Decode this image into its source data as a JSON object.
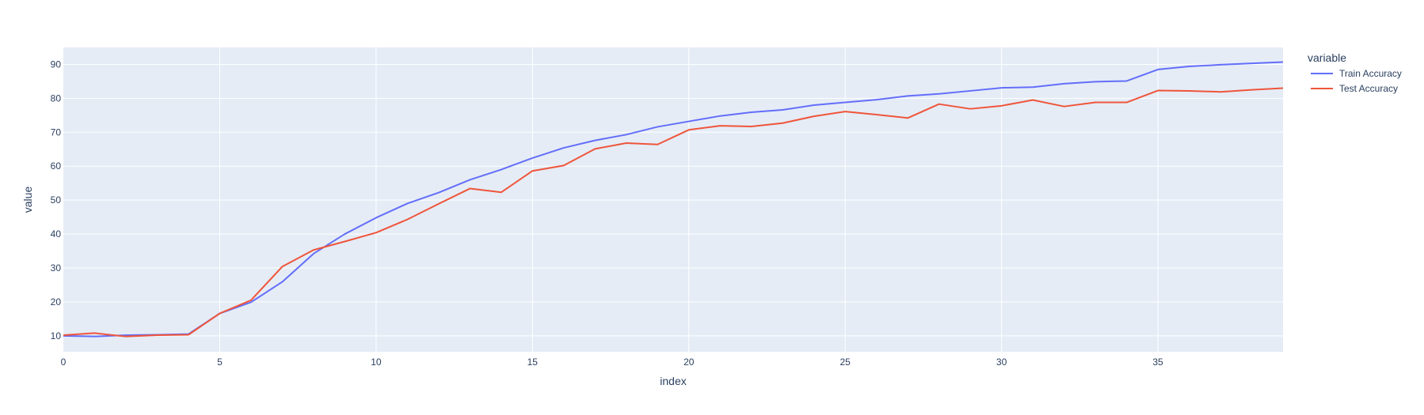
{
  "chart_data": {
    "type": "line",
    "xlabel": "index",
    "ylabel": "value",
    "xlim": [
      0,
      39
    ],
    "ylim": [
      5.3,
      95
    ],
    "x_ticks": [
      0,
      5,
      10,
      15,
      20,
      25,
      30,
      35
    ],
    "y_ticks": [
      10,
      20,
      30,
      40,
      50,
      60,
      70,
      80,
      90
    ],
    "grid": true,
    "legend": {
      "title": "variable",
      "placement": "top-right, outside plot"
    },
    "colors": {
      "plot_background": "#e5ecf6",
      "grid": "#ffffff",
      "text": "#2a3f5f"
    },
    "x": [
      0,
      1,
      2,
      3,
      4,
      5,
      6,
      7,
      8,
      9,
      10,
      11,
      12,
      13,
      14,
      15,
      16,
      17,
      18,
      19,
      20,
      21,
      22,
      23,
      24,
      25,
      26,
      27,
      28,
      29,
      30,
      31,
      32,
      33,
      34,
      35,
      36,
      37,
      38,
      39
    ],
    "series": [
      {
        "name": "Train Accuracy",
        "color": "#636efa",
        "values": [
          10.0,
          9.8,
          10.2,
          10.3,
          10.5,
          16.6,
          19.9,
          25.9,
          34.2,
          40.0,
          44.8,
          49.0,
          52.2,
          56.0,
          59.0,
          62.4,
          65.4,
          67.6,
          69.3,
          71.6,
          73.2,
          74.8,
          75.9,
          76.6,
          78.0,
          78.8,
          79.6,
          80.7,
          81.3,
          82.2,
          83.1,
          83.3,
          84.3,
          84.9,
          85.1,
          88.5,
          89.4,
          89.9,
          90.3,
          90.7
        ]
      },
      {
        "name": "Test Accuracy",
        "color": "#ef553b",
        "values": [
          10.2,
          10.8,
          9.8,
          10.2,
          10.3,
          16.6,
          20.5,
          30.4,
          35.3,
          37.8,
          40.4,
          44.3,
          48.9,
          53.4,
          52.3,
          58.6,
          60.2,
          65.1,
          66.8,
          66.4,
          70.7,
          71.9,
          71.7,
          72.7,
          74.7,
          76.1,
          75.2,
          74.2,
          78.3,
          76.9,
          77.8,
          79.5,
          77.6,
          78.8,
          78.8,
          82.3,
          82.2,
          81.9,
          82.5,
          83.0
        ]
      }
    ]
  }
}
